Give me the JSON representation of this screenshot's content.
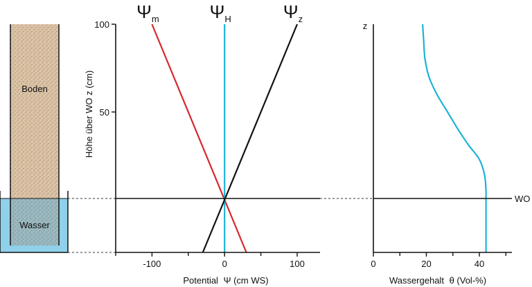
{
  "column": {
    "soil_label": "Boden",
    "water_label": "Wasser",
    "soil_color": "#dcc3a6",
    "water_color": "#8fd0ea"
  },
  "wo_label": "WO",
  "chart_data": [
    {
      "type": "line",
      "xlabel": "Potential",
      "xlabel_symbol": "Ψ",
      "xlabel_unit": "(cm WS)",
      "ylabel": "Höhe über WO z (cm)",
      "xlim": [
        -155,
        135
      ],
      "ylim": [
        -30,
        100
      ],
      "xticks": [
        -100,
        0,
        100
      ],
      "xtick_labels": [
        "-100",
        "0",
        "100"
      ],
      "xticks_minor": [
        -150,
        -50,
        50
      ],
      "yticks": [
        50,
        100
      ],
      "ytick_labels": [
        "50",
        "100"
      ],
      "grid": false,
      "series": [
        {
          "name": "m",
          "symbol": "Ψ",
          "color": "#d8262c",
          "x": [
            -100,
            30
          ],
          "y": [
            100,
            -30
          ]
        },
        {
          "name": "H",
          "symbol": "Ψ",
          "color": "#1bb3d8",
          "x": [
            0,
            0
          ],
          "y": [
            100,
            -30
          ]
        },
        {
          "name": "z",
          "symbol": "Ψ",
          "color": "#111111",
          "x": [
            100,
            -30
          ],
          "y": [
            100,
            -30
          ]
        }
      ]
    },
    {
      "type": "line",
      "xlabel": "Wassergehalt",
      "xlabel_symbol": "θ",
      "xlabel_unit": "(Vol-%)",
      "ylabel": "z",
      "xlim": [
        0,
        52
      ],
      "ylim": [
        -30,
        100
      ],
      "xticks": [
        0,
        20,
        40
      ],
      "xtick_labels": [
        "0",
        "20",
        "40"
      ],
      "xticks_minor": [
        10,
        30,
        50
      ],
      "grid": false,
      "series": [
        {
          "name": "",
          "color": "#1bb3d8",
          "x": [
            42.5,
            42.5,
            42.5,
            42,
            40,
            36,
            32,
            28,
            24,
            21,
            19.5,
            19,
            18.6
          ],
          "y": [
            -30,
            0,
            5,
            14,
            23,
            31,
            40,
            50,
            60,
            70,
            80,
            90,
            100
          ]
        }
      ]
    }
  ]
}
